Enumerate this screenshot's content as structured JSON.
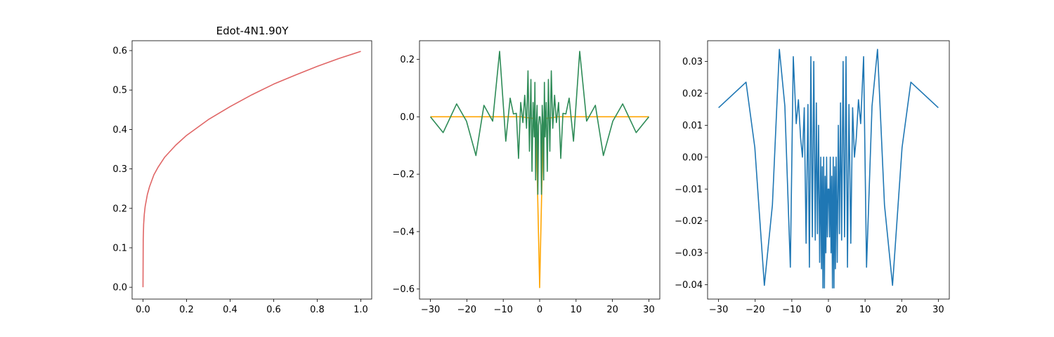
{
  "colors": {
    "panel1_line": "#e06666",
    "panel2_orange": "#ffa500",
    "panel2_green": "#2e8b57",
    "panel3_line": "#1f77b4"
  },
  "chart_data": [
    {
      "type": "line",
      "title": "Edot-4N1.90Y",
      "xlim": [
        -0.05,
        1.05
      ],
      "ylim": [
        -0.03,
        0.625
      ],
      "xticks": [
        0.0,
        0.2,
        0.4,
        0.6,
        0.8,
        1.0
      ],
      "xtick_labels": [
        "0.0",
        "0.2",
        "0.4",
        "0.6",
        "0.8",
        "1.0"
      ],
      "yticks": [
        0.0,
        0.1,
        0.2,
        0.3,
        0.4,
        0.5,
        0.6
      ],
      "ytick_labels": [
        "0.0",
        "0.1",
        "0.2",
        "0.3",
        "0.4",
        "0.5",
        "0.6"
      ],
      "series": [
        {
          "color": "#e06666",
          "x": [
            0.0,
            0.001,
            0.003,
            0.006,
            0.01,
            0.02,
            0.03,
            0.05,
            0.07,
            0.1,
            0.15,
            0.2,
            0.25,
            0.3,
            0.4,
            0.5,
            0.6,
            0.7,
            0.8,
            0.9,
            1.0
          ],
          "y": [
            0.0,
            0.12,
            0.16,
            0.185,
            0.205,
            0.235,
            0.255,
            0.285,
            0.305,
            0.33,
            0.36,
            0.385,
            0.405,
            0.425,
            0.458,
            0.488,
            0.515,
            0.538,
            0.56,
            0.58,
            0.598
          ]
        }
      ]
    },
    {
      "type": "line",
      "xlim": [
        -33,
        33
      ],
      "ylim": [
        -0.635,
        0.265
      ],
      "xticks": [
        -30,
        -20,
        -10,
        0,
        10,
        20,
        30
      ],
      "xtick_labels": [
        "−30",
        "−20",
        "−10",
        "0",
        "10",
        "20",
        "30"
      ],
      "yticks": [
        -0.6,
        -0.4,
        -0.2,
        0.0,
        0.2
      ],
      "ytick_labels": [
        "−0.6",
        "−0.4",
        "−0.2",
        "0.0",
        "0.2"
      ],
      "series": [
        {
          "color": "#ffa500",
          "x": [
            -30,
            -20,
            -10,
            -5,
            -2,
            -1,
            -0.5,
            0,
            0.5,
            1,
            2,
            5,
            10,
            20,
            30
          ],
          "y": [
            0,
            0,
            0,
            0,
            -0.005,
            -0.03,
            -0.3,
            -0.595,
            -0.3,
            -0.03,
            -0.005,
            0,
            0,
            0,
            0
          ]
        },
        {
          "color": "#2e8b57",
          "x": [
            -30,
            -26.5,
            -22.8,
            -20.1,
            -17.5,
            -15.3,
            -12.9,
            -11.0,
            -9.3,
            -8.1,
            -7.2,
            -6.4,
            -5.8,
            -5.2,
            -4.6,
            -4.1,
            -3.6,
            -3.2,
            -2.8,
            -2.4,
            -2.1,
            -1.8,
            -1.5,
            -1.3,
            -1.1,
            -0.9,
            -0.7,
            -0.5,
            -0.3,
            -0.1,
            0.1,
            0.3,
            0.5,
            0.7,
            0.9,
            1.1,
            1.3,
            1.5,
            1.8,
            2.1,
            2.4,
            2.8,
            3.2,
            3.6,
            4.1,
            4.6,
            5.2,
            5.8,
            6.4,
            7.2,
            8.1,
            9.3,
            11.0,
            12.9,
            15.3,
            17.5,
            20.1,
            22.8,
            26.5,
            30
          ],
          "y": [
            0.0,
            -0.055,
            0.045,
            -0.015,
            -0.135,
            0.04,
            -0.015,
            0.228,
            -0.085,
            0.065,
            0.01,
            0.012,
            -0.145,
            0.05,
            -0.02,
            0.075,
            -0.04,
            0.16,
            -0.12,
            0.13,
            -0.19,
            0.05,
            -0.07,
            0.12,
            -0.22,
            -0.02,
            0.04,
            -0.27,
            -0.03,
            0.0,
            0.0,
            -0.03,
            -0.27,
            0.04,
            -0.02,
            -0.22,
            0.12,
            -0.07,
            0.05,
            -0.19,
            0.13,
            -0.12,
            0.16,
            -0.04,
            0.075,
            -0.02,
            0.05,
            -0.145,
            0.012,
            0.01,
            0.065,
            -0.085,
            0.228,
            -0.015,
            0.04,
            -0.135,
            -0.015,
            0.045,
            -0.055,
            0.0
          ]
        }
      ]
    },
    {
      "type": "line",
      "xlim": [
        -33,
        33
      ],
      "ylim": [
        -0.0445,
        0.0365
      ],
      "xticks": [
        -30,
        -20,
        -10,
        0,
        10,
        20,
        30
      ],
      "xtick_labels": [
        "−30",
        "−20",
        "−10",
        "0",
        "10",
        "20",
        "30"
      ],
      "yticks": [
        -0.04,
        -0.03,
        -0.02,
        -0.01,
        0.0,
        0.01,
        0.02,
        0.03
      ],
      "ytick_labels": [
        "−0.04",
        "−0.03",
        "−0.02",
        "−0.01",
        "0.00",
        "0.01",
        "0.02",
        "0.03"
      ],
      "series": [
        {
          "color": "#1f77b4",
          "x": [
            -30,
            -22.5,
            -20.1,
            -17.5,
            -15.3,
            -13.4,
            -11.9,
            -10.4,
            -9.6,
            -8.8,
            -8.2,
            -7.6,
            -7.1,
            -6.6,
            -6.1,
            -5.6,
            -5.2,
            -4.8,
            -4.4,
            -4.0,
            -3.6,
            -3.3,
            -3.0,
            -2.7,
            -2.4,
            -2.1,
            -1.9,
            -1.7,
            -1.5,
            -1.3,
            -1.1,
            -0.9,
            -0.7,
            -0.5,
            -0.3,
            -0.1,
            0.1,
            0.3,
            0.5,
            0.7,
            0.9,
            1.1,
            1.3,
            1.5,
            1.7,
            1.9,
            2.1,
            2.4,
            2.7,
            3.0,
            3.3,
            3.6,
            4.0,
            4.4,
            4.8,
            5.2,
            5.6,
            6.1,
            6.6,
            7.1,
            7.6,
            8.2,
            8.8,
            9.6,
            10.4,
            11.9,
            13.4,
            15.3,
            17.5,
            20.1,
            22.5,
            30
          ],
          "y": [
            0.0155,
            0.0235,
            0.003,
            -0.0402,
            -0.015,
            0.0338,
            0.016,
            -0.0345,
            0.0315,
            0.0105,
            0.018,
            0.006,
            0.0,
            0.0155,
            -0.027,
            0.0165,
            -0.0345,
            0.0315,
            -0.025,
            0.03,
            -0.026,
            0.017,
            -0.024,
            0.01,
            -0.033,
            0.0,
            -0.035,
            -0.003,
            -0.041,
            0.0,
            -0.041,
            -0.006,
            -0.03,
            0.0,
            -0.025,
            -0.01,
            -0.01,
            -0.025,
            0.0,
            -0.03,
            -0.006,
            -0.041,
            0.0,
            -0.041,
            -0.003,
            -0.035,
            0.0,
            -0.033,
            0.01,
            -0.024,
            0.017,
            -0.026,
            0.03,
            -0.025,
            0.0315,
            -0.0345,
            0.0165,
            -0.027,
            0.0155,
            0.0,
            0.006,
            0.018,
            0.0105,
            0.0315,
            -0.0345,
            0.016,
            0.0338,
            -0.015,
            -0.0402,
            0.003,
            0.0235,
            0.0155
          ]
        }
      ]
    }
  ]
}
